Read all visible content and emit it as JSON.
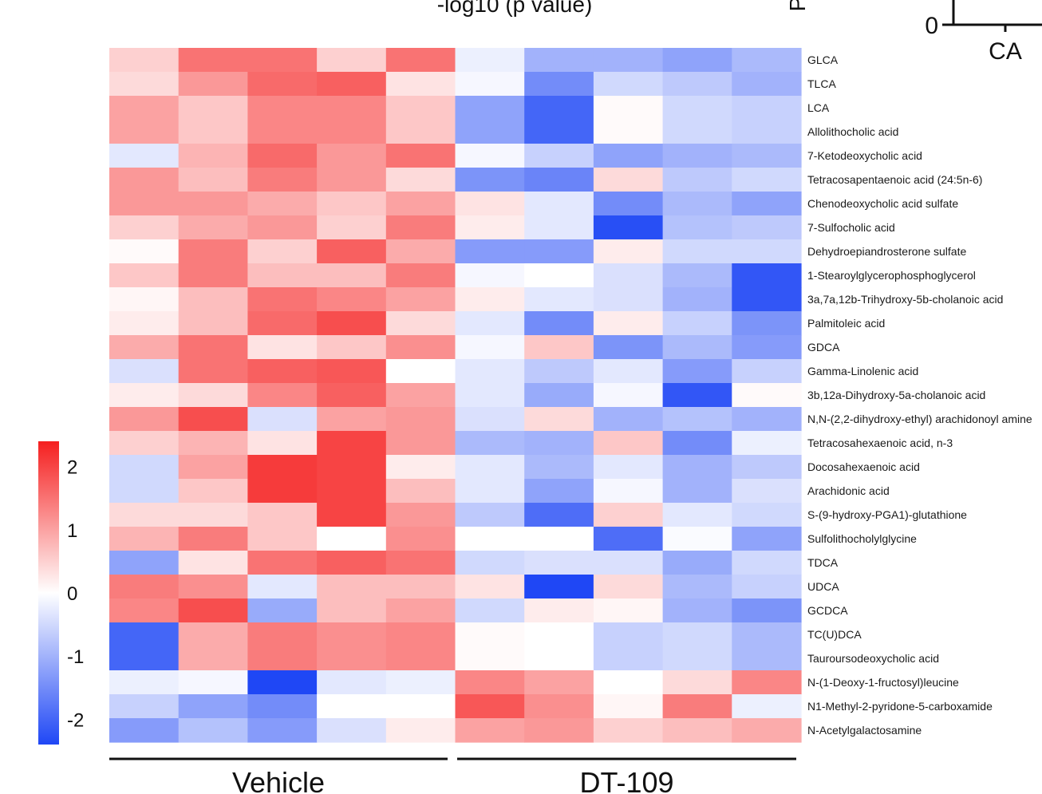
{
  "chart_data": {
    "type": "heatmap",
    "top_fragments": {
      "axis_title": "-log10 (p value)",
      "y_label_partial": "P",
      "zero_tick": "0",
      "category": "CA"
    },
    "groups": [
      {
        "label": "Vehicle",
        "n": 5
      },
      {
        "label": "DT-109",
        "n": 5
      }
    ],
    "colorbar": {
      "min": -2.4,
      "max": 2.4,
      "ticks": [
        2,
        1,
        0,
        -1,
        -2
      ],
      "tick_labels": [
        "2",
        "1",
        "0",
        "-1",
        "-2"
      ],
      "low_color": "#1f47f5",
      "mid_color": "#ffffff",
      "high_color": "#f51f1f"
    },
    "rows": [
      "GLCA",
      "TLCA",
      "LCA",
      "Allolithocholic acid",
      "7-Ketodeoxycholic acid",
      "Tetracosapentaenoic acid (24:5n-6)",
      "Chenodeoxycholic acid sulfate",
      "7-Sulfocholic acid",
      "Dehydroepiandrosterone sulfate",
      "1-Stearoylglycerophosphoglycerol",
      "3a,7a,12b-Trihydroxy-5b-cholanoic acid",
      "Palmitoleic acid",
      "GDCA",
      "Gamma-Linolenic acid",
      "3b,12a-Dihydroxy-5a-cholanoic acid",
      "N,N-(2,2-dihydroxy-ethyl) arachidonoyl amine",
      "Tetracosahexaenoic acid, n-3",
      "Docosahexaenoic acid",
      "Arachidonic acid",
      "S-(9-hydroxy-PGA1)-glutathione",
      "Sulfolithocholylglycine",
      "TDCA",
      "UDCA",
      "GCDCA",
      "TC(U)DCA",
      "Tauroursodeoxycholic acid",
      "N-(1-Deoxy-1-fructosyl)leucine",
      "N1-Methyl-2-pyridone-5-carboxamide",
      "N-Acetylgalactosamine"
    ],
    "row_spans": [
      1,
      1,
      2,
      0,
      1,
      1,
      1,
      1,
      1,
      1,
      1,
      1,
      1,
      1,
      1,
      1,
      1,
      1,
      1,
      1,
      1,
      1,
      1,
      1,
      2,
      0,
      1,
      1,
      1
    ],
    "values": [
      [
        0.5,
        1.5,
        1.5,
        0.5,
        1.5,
        -0.2,
        -1.0,
        -1.0,
        -1.2,
        -0.9
      ],
      [
        0.4,
        1.1,
        1.6,
        1.7,
        0.3,
        -0.1,
        -1.5,
        -0.5,
        -0.7,
        -1.0
      ],
      [
        1.0,
        0.6,
        1.3,
        1.3,
        0.6,
        -1.2,
        -2.0,
        0.05,
        -0.5,
        -0.6
      ],
      [
        1.0,
        0.6,
        1.3,
        1.3,
        0.6,
        -1.2,
        -2.0,
        0.05,
        -0.5,
        -0.6
      ],
      [
        -0.3,
        0.8,
        1.6,
        1.1,
        1.5,
        -0.1,
        -0.6,
        -1.2,
        -1.0,
        -0.9
      ],
      [
        1.1,
        0.7,
        1.4,
        1.1,
        0.4,
        -1.4,
        -1.6,
        0.4,
        -0.7,
        -0.5
      ],
      [
        1.1,
        1.1,
        0.9,
        0.6,
        1.0,
        0.3,
        -0.3,
        -1.5,
        -0.9,
        -1.2
      ],
      [
        0.5,
        0.9,
        1.1,
        0.5,
        1.4,
        0.2,
        -0.3,
        -2.3,
        -0.8,
        -0.7
      ],
      [
        0.05,
        1.4,
        0.5,
        1.7,
        0.9,
        -1.3,
        -1.3,
        0.2,
        -0.5,
        -0.5
      ],
      [
        0.6,
        1.4,
        0.7,
        0.7,
        1.4,
        -0.1,
        0.0,
        -0.4,
        -0.9,
        -2.2
      ],
      [
        0.1,
        0.7,
        1.5,
        1.3,
        1.0,
        0.2,
        -0.3,
        -0.4,
        -1.0,
        -2.2
      ],
      [
        0.2,
        0.7,
        1.6,
        1.9,
        0.4,
        -0.3,
        -1.5,
        0.2,
        -0.6,
        -1.4
      ],
      [
        0.9,
        1.5,
        0.3,
        0.6,
        1.2,
        -0.1,
        0.6,
        -1.4,
        -0.9,
        -1.3
      ],
      [
        -0.4,
        1.5,
        1.7,
        1.8,
        0.0,
        -0.3,
        -0.7,
        -0.3,
        -1.3,
        -0.6
      ],
      [
        0.2,
        0.4,
        1.3,
        1.7,
        1.0,
        -0.3,
        -1.1,
        -0.1,
        -2.2,
        0.05
      ],
      [
        1.1,
        1.9,
        -0.4,
        1.0,
        1.1,
        -0.4,
        0.4,
        -1.0,
        -0.8,
        -1.0
      ],
      [
        0.5,
        0.8,
        0.3,
        2.0,
        1.1,
        -0.9,
        -1.0,
        0.6,
        -1.5,
        -0.2
      ],
      [
        -0.5,
        1.0,
        2.1,
        2.0,
        0.2,
        -0.3,
        -0.9,
        -0.3,
        -1.0,
        -0.7
      ],
      [
        -0.5,
        0.6,
        2.1,
        2.0,
        0.7,
        -0.3,
        -1.2,
        -0.1,
        -1.0,
        -0.4
      ],
      [
        0.4,
        0.4,
        0.6,
        2.0,
        1.1,
        -0.7,
        -1.9,
        0.5,
        -0.3,
        -0.5
      ],
      [
        0.8,
        1.4,
        0.6,
        0.0,
        1.2,
        0.0,
        0.0,
        -1.9,
        -0.05,
        -1.2
      ],
      [
        -1.2,
        0.3,
        1.5,
        1.7,
        1.5,
        -0.5,
        -0.4,
        -0.4,
        -1.1,
        -0.5
      ],
      [
        1.4,
        1.2,
        -0.3,
        0.7,
        0.7,
        0.3,
        -2.4,
        0.4,
        -0.9,
        -0.6
      ],
      [
        1.3,
        1.9,
        -1.1,
        0.7,
        1.0,
        -0.5,
        0.2,
        0.1,
        -1.0,
        -1.4
      ],
      [
        -2.0,
        0.9,
        1.4,
        1.2,
        1.3,
        0.05,
        0.0,
        -0.6,
        -0.5,
        -0.9
      ],
      [
        -2.0,
        0.9,
        1.4,
        1.2,
        1.3,
        0.05,
        0.0,
        -0.6,
        -0.5,
        -0.9
      ],
      [
        -0.2,
        -0.1,
        -2.4,
        -0.3,
        -0.2,
        1.3,
        1.0,
        0.0,
        0.4,
        1.3
      ],
      [
        -0.6,
        -1.2,
        -1.5,
        0.0,
        0.0,
        1.8,
        1.2,
        0.1,
        1.4,
        -0.2
      ],
      [
        -1.3,
        -0.8,
        -1.3,
        -0.4,
        0.2,
        1.0,
        1.1,
        0.5,
        0.7,
        0.9
      ]
    ],
    "xlabel": "",
    "ylabel": ""
  }
}
